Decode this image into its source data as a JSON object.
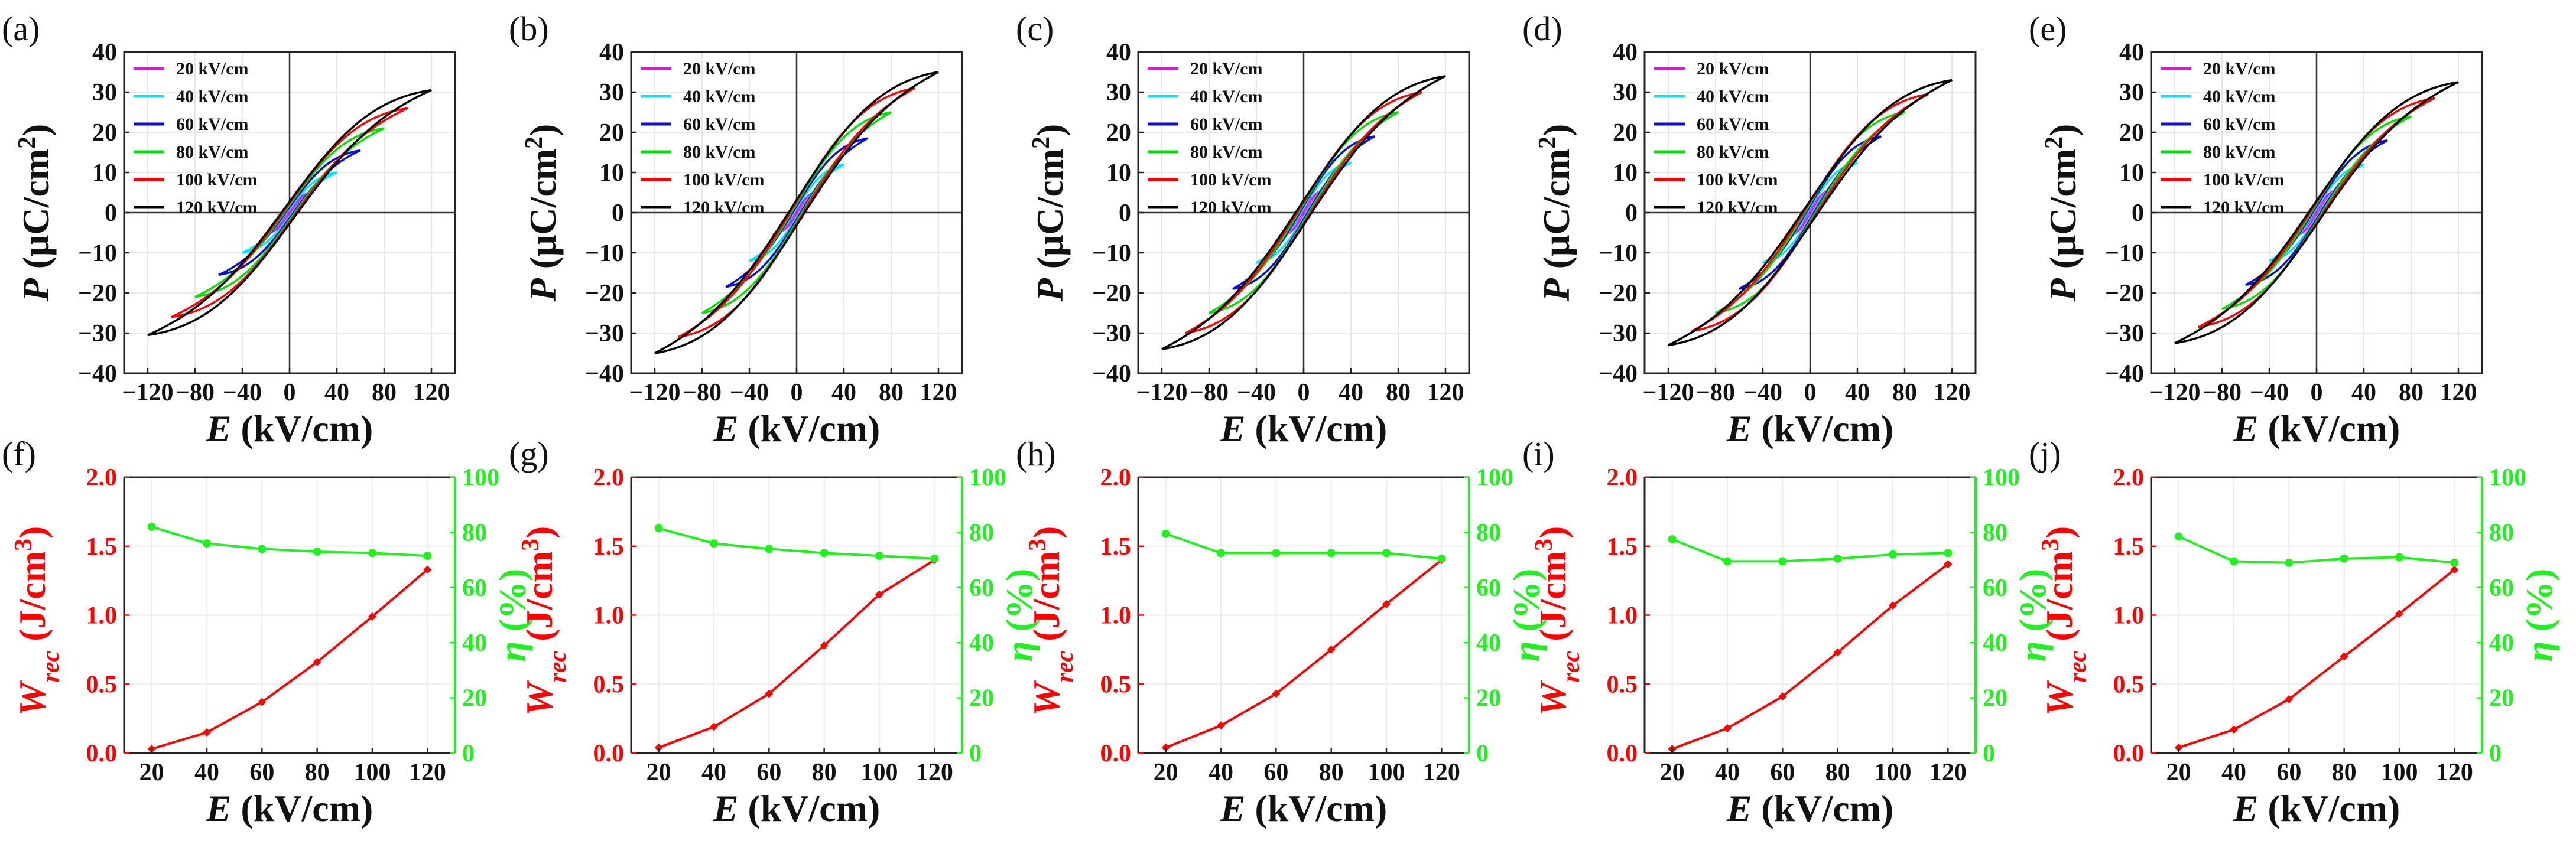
{
  "colors": {
    "20 kV/cm": "#ff00ff",
    "40 kV/cm": "#00e5ff",
    "60 kV/cm": "#0a12c8",
    "80 kV/cm": "#00dd00",
    "100 kV/cm": "#ff0000",
    "120 kV/cm": "#000000",
    "wrec": "#ff0000",
    "eta": "#22ee22"
  },
  "chart_data": [
    {
      "panel": "(a)",
      "type": "line",
      "subtype": "hysteresis-loops",
      "xlabel": "E (kV/cm)",
      "ylabel": "P (μC/cm²)",
      "xlim": [
        -140,
        140
      ],
      "ylim": [
        -40,
        40
      ],
      "xticks": [
        "−120",
        "−80",
        "−40",
        "0",
        "40",
        "80",
        "120"
      ],
      "yticks": [
        "−40",
        "−30",
        "−20",
        "−10",
        "0",
        "10",
        "20",
        "30",
        "40"
      ],
      "legend": [
        "20 kV/cm",
        "40 kV/cm",
        "60 kV/cm",
        "80 kV/cm",
        "100 kV/cm",
        "120 kV/cm"
      ],
      "series": [
        {
          "name": "20 kV/cm",
          "Emax": 20,
          "Pmax": 5.2
        },
        {
          "name": "40 kV/cm",
          "Emax": 40,
          "Pmax": 10
        },
        {
          "name": "60 kV/cm",
          "Emax": 60,
          "Pmax": 15.5
        },
        {
          "name": "80 kV/cm",
          "Emax": 80,
          "Pmax": 21
        },
        {
          "name": "100 kV/cm",
          "Emax": 100,
          "Pmax": 26
        },
        {
          "name": "120 kV/cm",
          "Emax": 120,
          "Pmax": 30.5
        }
      ]
    },
    {
      "panel": "(b)",
      "type": "line",
      "subtype": "hysteresis-loops",
      "xlabel": "E (kV/cm)",
      "ylabel": "P (μC/cm²)",
      "xlim": [
        -140,
        140
      ],
      "ylim": [
        -40,
        40
      ],
      "xticks": [
        "−120",
        "−80",
        "−40",
        "0",
        "40",
        "80",
        "120"
      ],
      "yticks": [
        "−40",
        "−30",
        "−20",
        "−10",
        "0",
        "10",
        "20",
        "30",
        "40"
      ],
      "legend": [
        "20 kV/cm",
        "40 kV/cm",
        "60 kV/cm",
        "80 kV/cm",
        "100 kV/cm",
        "120 kV/cm"
      ],
      "series": [
        {
          "name": "20 kV/cm",
          "Emax": 20,
          "Pmax": 5.5
        },
        {
          "name": "40 kV/cm",
          "Emax": 40,
          "Pmax": 12
        },
        {
          "name": "60 kV/cm",
          "Emax": 60,
          "Pmax": 18.5
        },
        {
          "name": "80 kV/cm",
          "Emax": 80,
          "Pmax": 25
        },
        {
          "name": "100 kV/cm",
          "Emax": 100,
          "Pmax": 31
        },
        {
          "name": "120 kV/cm",
          "Emax": 120,
          "Pmax": 35
        }
      ]
    },
    {
      "panel": "(c)",
      "type": "line",
      "subtype": "hysteresis-loops",
      "xlabel": "E (kV/cm)",
      "ylabel": "P (μC/cm²)",
      "xlim": [
        -140,
        140
      ],
      "ylim": [
        -40,
        40
      ],
      "xticks": [
        "−120",
        "−80",
        "−40",
        "0",
        "40",
        "80",
        "120"
      ],
      "yticks": [
        "−40",
        "−30",
        "−20",
        "−10",
        "0",
        "10",
        "20",
        "30",
        "40"
      ],
      "legend": [
        "20 kV/cm",
        "40 kV/cm",
        "60 kV/cm",
        "80 kV/cm",
        "100 kV/cm",
        "120 kV/cm"
      ],
      "series": [
        {
          "name": "20 kV/cm",
          "Emax": 20,
          "Pmax": 6
        },
        {
          "name": "40 kV/cm",
          "Emax": 40,
          "Pmax": 12.5
        },
        {
          "name": "60 kV/cm",
          "Emax": 60,
          "Pmax": 19
        },
        {
          "name": "80 kV/cm",
          "Emax": 80,
          "Pmax": 25
        },
        {
          "name": "100 kV/cm",
          "Emax": 100,
          "Pmax": 30
        },
        {
          "name": "120 kV/cm",
          "Emax": 120,
          "Pmax": 34
        }
      ]
    },
    {
      "panel": "(d)",
      "type": "line",
      "subtype": "hysteresis-loops",
      "xlabel": "E (kV/cm)",
      "ylabel": "P (μC/cm²)",
      "xlim": [
        -140,
        140
      ],
      "ylim": [
        -40,
        40
      ],
      "xticks": [
        "−120",
        "−80",
        "−40",
        "0",
        "40",
        "80",
        "120"
      ],
      "yticks": [
        "−40",
        "−30",
        "−20",
        "−10",
        "0",
        "10",
        "20",
        "30",
        "40"
      ],
      "legend": [
        "20 kV/cm",
        "40 kV/cm",
        "60 kV/cm",
        "80 kV/cm",
        "100 kV/cm",
        "120 kV/cm"
      ],
      "series": [
        {
          "name": "20 kV/cm",
          "Emax": 20,
          "Pmax": 6
        },
        {
          "name": "40 kV/cm",
          "Emax": 40,
          "Pmax": 12.5
        },
        {
          "name": "60 kV/cm",
          "Emax": 60,
          "Pmax": 19
        },
        {
          "name": "80 kV/cm",
          "Emax": 80,
          "Pmax": 25
        },
        {
          "name": "100 kV/cm",
          "Emax": 100,
          "Pmax": 29.5
        },
        {
          "name": "120 kV/cm",
          "Emax": 120,
          "Pmax": 33
        }
      ]
    },
    {
      "panel": "(e)",
      "type": "line",
      "subtype": "hysteresis-loops",
      "xlabel": "E (kV/cm)",
      "ylabel": "P (μC/cm²)",
      "xlim": [
        -140,
        140
      ],
      "ylim": [
        -40,
        40
      ],
      "xticks": [
        "−120",
        "−80",
        "−40",
        "0",
        "40",
        "80",
        "120"
      ],
      "yticks": [
        "−40",
        "−30",
        "−20",
        "−10",
        "0",
        "10",
        "20",
        "30",
        "40"
      ],
      "legend": [
        "20 kV/cm",
        "40 kV/cm",
        "60 kV/cm",
        "80 kV/cm",
        "100 kV/cm",
        "120 kV/cm"
      ],
      "series": [
        {
          "name": "20 kV/cm",
          "Emax": 20,
          "Pmax": 6
        },
        {
          "name": "40 kV/cm",
          "Emax": 40,
          "Pmax": 12
        },
        {
          "name": "60 kV/cm",
          "Emax": 60,
          "Pmax": 18
        },
        {
          "name": "80 kV/cm",
          "Emax": 80,
          "Pmax": 24
        },
        {
          "name": "100 kV/cm",
          "Emax": 100,
          "Pmax": 28.5
        },
        {
          "name": "120 kV/cm",
          "Emax": 120,
          "Pmax": 32.5
        }
      ]
    },
    {
      "panel": "(f)",
      "type": "line",
      "subtype": "dual-axis",
      "xlabel": "E (kV/cm)",
      "ylabel_left": "W_rec (J/cm³)",
      "ylabel_right": "η (%)",
      "x": [
        20,
        40,
        60,
        80,
        100,
        120
      ],
      "xlim": [
        10,
        130
      ],
      "ylim_left": [
        0,
        2
      ],
      "ylim_right": [
        0,
        100
      ],
      "xticks": [
        "20",
        "40",
        "60",
        "80",
        "100",
        "120"
      ],
      "yticks_left": [
        "0.0",
        "0.5",
        "1.0",
        "1.5",
        "2.0"
      ],
      "yticks_right": [
        "0",
        "20",
        "40",
        "60",
        "80",
        "100"
      ],
      "wrec": [
        0.03,
        0.15,
        0.37,
        0.66,
        0.99,
        1.33
      ],
      "eta": [
        82,
        76,
        74,
        73,
        72.5,
        71.5
      ]
    },
    {
      "panel": "(g)",
      "type": "line",
      "subtype": "dual-axis",
      "xlabel": "E (kV/cm)",
      "ylabel_left": "W_rec (J/cm³)",
      "ylabel_right": "η (%)",
      "x": [
        20,
        40,
        60,
        80,
        100,
        120
      ],
      "xlim": [
        10,
        130
      ],
      "ylim_left": [
        0,
        2
      ],
      "ylim_right": [
        0,
        100
      ],
      "xticks": [
        "20",
        "40",
        "60",
        "80",
        "100",
        "120"
      ],
      "yticks_left": [
        "0.0",
        "0.5",
        "1.0",
        "1.5",
        "2.0"
      ],
      "yticks_right": [
        "0",
        "20",
        "40",
        "60",
        "80",
        "100"
      ],
      "wrec": [
        0.04,
        0.19,
        0.43,
        0.78,
        1.15,
        1.4
      ],
      "eta": [
        81.5,
        76,
        74,
        72.5,
        71.5,
        70.5
      ]
    },
    {
      "panel": "(h)",
      "type": "line",
      "subtype": "dual-axis",
      "xlabel": "E (kV/cm)",
      "ylabel_left": "W_rec (J/cm³)",
      "ylabel_right": "η (%)",
      "x": [
        20,
        40,
        60,
        80,
        100,
        120
      ],
      "xlim": [
        10,
        130
      ],
      "ylim_left": [
        0,
        2
      ],
      "ylim_right": [
        0,
        100
      ],
      "xticks": [
        "20",
        "40",
        "60",
        "80",
        "100",
        "120"
      ],
      "yticks_left": [
        "0.0",
        "0.5",
        "1.0",
        "1.5",
        "2.0"
      ],
      "yticks_right": [
        "0",
        "20",
        "40",
        "60",
        "80",
        "100"
      ],
      "wrec": [
        0.04,
        0.2,
        0.43,
        0.75,
        1.08,
        1.4
      ],
      "eta": [
        79.5,
        72.5,
        72.5,
        72.5,
        72.5,
        70.5
      ]
    },
    {
      "panel": "(i)",
      "type": "line",
      "subtype": "dual-axis",
      "xlabel": "E (kV/cm)",
      "ylabel_left": "W_rec (J/cm³)",
      "ylabel_right": "η (%)",
      "x": [
        20,
        40,
        60,
        80,
        100,
        120
      ],
      "xlim": [
        10,
        130
      ],
      "ylim_left": [
        0,
        2
      ],
      "ylim_right": [
        0,
        100
      ],
      "xticks": [
        "20",
        "40",
        "60",
        "80",
        "100",
        "120"
      ],
      "yticks_left": [
        "0.0",
        "0.5",
        "1.0",
        "1.5",
        "2.0"
      ],
      "yticks_right": [
        "0",
        "20",
        "40",
        "60",
        "80",
        "100"
      ],
      "wrec": [
        0.03,
        0.18,
        0.41,
        0.73,
        1.07,
        1.37
      ],
      "eta": [
        77.5,
        69.5,
        69.5,
        70.5,
        72,
        72.5
      ]
    },
    {
      "panel": "(j)",
      "type": "line",
      "subtype": "dual-axis",
      "xlabel": "E (kV/cm)",
      "ylabel_left": "W_rec (J/cm³)",
      "ylabel_right": "η (%)",
      "x": [
        20,
        40,
        60,
        80,
        100,
        120
      ],
      "xlim": [
        10,
        130
      ],
      "ylim_left": [
        0,
        2
      ],
      "ylim_right": [
        0,
        100
      ],
      "xticks": [
        "20",
        "40",
        "60",
        "80",
        "100",
        "120"
      ],
      "yticks_left": [
        "0.0",
        "0.5",
        "1.0",
        "1.5",
        "2.0"
      ],
      "yticks_right": [
        "0",
        "20",
        "40",
        "60",
        "80",
        "100"
      ],
      "wrec": [
        0.04,
        0.17,
        0.39,
        0.7,
        1.01,
        1.33
      ],
      "eta": [
        78.5,
        69.5,
        69,
        70.5,
        71,
        69
      ]
    }
  ]
}
